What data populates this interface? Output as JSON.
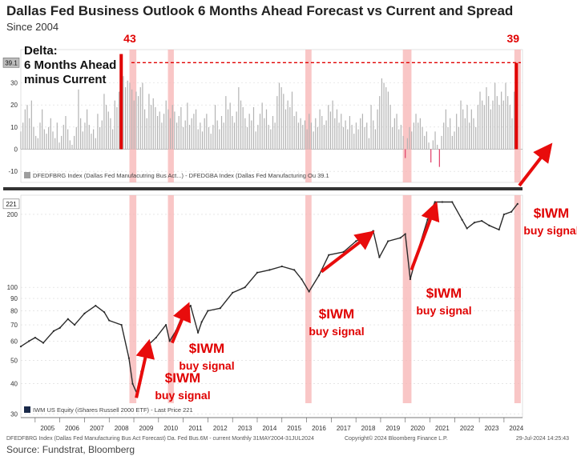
{
  "title": "Dallas Fed Business Outlook 6 Months Ahead Forecast vs Current and Spread",
  "subtitle": "Since 2004",
  "source": "Source: Fundstrat, Bloomberg",
  "chart_data": [
    {
      "type": "bar",
      "panel": "top",
      "annotation": "Delta:\n6 Months Ahead\nminus Current",
      "annotation_lines": [
        "Delta:",
        "6 Months Ahead",
        "minus Current"
      ],
      "legend": "DFEDFBRG Index (Dallas Fed Manufacutring Bus Act...) - DFEDGBA Index (Dallas Fed Manufacturing Ou 39.1",
      "last_value_label": "39.1",
      "yticks": [
        30,
        20,
        10,
        0,
        -10
      ],
      "ylim": [
        -15,
        45
      ],
      "x_start": 2004.42,
      "x_end": 2024.5,
      "highlight_labels": [
        {
          "text": "43",
          "x": 2008.9,
          "value": 43
        },
        {
          "text": "39",
          "x": 2024.5,
          "value": 39
        }
      ],
      "reference_line": 39.1,
      "colors": {
        "positive": "#b3b3b3",
        "negative": "#e0406a",
        "highlight": "#e00000"
      },
      "values": [
        8,
        12,
        18,
        20,
        14,
        22,
        10,
        6,
        5,
        12,
        18,
        9,
        7,
        10,
        14,
        8,
        5,
        12,
        3,
        6,
        11,
        15,
        9,
        4,
        2,
        6,
        10,
        27,
        14,
        8,
        12,
        18,
        11,
        7,
        9,
        5,
        16,
        10,
        13,
        25,
        20,
        17,
        14,
        9,
        22,
        19,
        26,
        43,
        33,
        28,
        31,
        30,
        27,
        22,
        26,
        24,
        28,
        30,
        18,
        14,
        25,
        20,
        23,
        19,
        15,
        17,
        12,
        16,
        22,
        18,
        14,
        20,
        17,
        12,
        15,
        19,
        10,
        13,
        21,
        11,
        14,
        16,
        18,
        9,
        12,
        8,
        14,
        16,
        10,
        7,
        11,
        20,
        13,
        9,
        15,
        12,
        24,
        18,
        21,
        15,
        12,
        17,
        28,
        22,
        19,
        14,
        10,
        16,
        13,
        19,
        8,
        11,
        16,
        21,
        14,
        18,
        11,
        9,
        15,
        12,
        24,
        30,
        28,
        25,
        18,
        22,
        19,
        26,
        15,
        17,
        12,
        14,
        11,
        13,
        9,
        16,
        12,
        8,
        14,
        10,
        18,
        15,
        11,
        13,
        20,
        17,
        22,
        14,
        18,
        12,
        16,
        10,
        13,
        9,
        15,
        11,
        7,
        12,
        9,
        14,
        16,
        10,
        12,
        5,
        20,
        13,
        9,
        18,
        24,
        32,
        30,
        28,
        26,
        20,
        10,
        14,
        16,
        9,
        11,
        6,
        -4,
        5,
        10,
        8,
        12,
        16,
        12,
        14,
        10,
        6,
        8,
        3,
        -6,
        4,
        8,
        2,
        -8,
        6,
        12,
        18,
        10,
        14,
        6,
        8,
        16,
        10,
        22,
        18,
        14,
        20,
        12,
        18,
        14,
        10,
        20,
        26,
        22,
        20,
        28,
        24,
        18,
        22,
        30,
        24,
        20,
        26,
        22,
        30,
        24,
        20,
        14,
        26,
        39
      ]
    },
    {
      "type": "line",
      "panel": "bottom",
      "series_name": "IWM US Equity (iShares Russell 2000 ETF) - Last Price 221",
      "last_value_label": "221",
      "yscale": "log",
      "yticks": [
        200,
        100,
        90,
        80,
        70,
        60,
        50,
        40,
        30
      ],
      "ylim": [
        29,
        240
      ],
      "x": [
        2004.42,
        2004.75,
        2005.0,
        2005.33,
        2005.75,
        2006.0,
        2006.33,
        2006.6,
        2007.0,
        2007.45,
        2007.8,
        2008.0,
        2008.5,
        2008.8,
        2008.95,
        2009.15,
        2009.3,
        2009.6,
        2009.9,
        2010.3,
        2010.45,
        2010.7,
        2011.0,
        2011.3,
        2011.6,
        2011.75,
        2012.0,
        2012.5,
        2013.0,
        2013.5,
        2014.0,
        2014.5,
        2015.0,
        2015.5,
        2015.8,
        2016.1,
        2016.5,
        2016.9,
        2017.5,
        2018.0,
        2018.7,
        2018.95,
        2019.3,
        2019.8,
        2020.0,
        2020.2,
        2020.5,
        2020.9,
        2021.2,
        2021.5,
        2021.9,
        2022.3,
        2022.5,
        2022.8,
        2023.1,
        2023.4,
        2023.8,
        2024.0,
        2024.3,
        2024.55
      ],
      "values": [
        57,
        60,
        62,
        59,
        66,
        68,
        74,
        70,
        78,
        84,
        79,
        73,
        70,
        51,
        40,
        36,
        45,
        58,
        62,
        70,
        60,
        66,
        78,
        84,
        65,
        72,
        80,
        82,
        95,
        100,
        115,
        118,
        122,
        118,
        108,
        96,
        112,
        136,
        140,
        155,
        171,
        133,
        155,
        160,
        166,
        108,
        140,
        190,
        225,
        225,
        225,
        190,
        175,
        185,
        188,
        180,
        173,
        200,
        205,
        221
      ],
      "buy_signal_label": "$IWM\nbuy signal",
      "buy_signals": [
        {
          "label_lines": [
            "$IWM",
            "buy signal"
          ],
          "from": [
            2009.1,
            35
          ],
          "to": [
            2009.55,
            56
          ]
        },
        {
          "label_lines": [
            "$IWM",
            "buy signal"
          ],
          "from": [
            2010.55,
            59
          ],
          "to": [
            2011.1,
            80
          ]
        },
        {
          "label_lines": [
            "$IWM",
            "buy signal"
          ],
          "from": [
            2016.6,
            116
          ],
          "to": [
            2018.45,
            162
          ]
        },
        {
          "label_lines": [
            "$IWM",
            "buy signal"
          ],
          "from": [
            2020.25,
            118
          ],
          "to": [
            2021.15,
            208
          ]
        },
        {
          "label_lines": [
            "$IWM",
            "buy signal"
          ],
          "from": [
            2024.55,
            221
          ],
          "to": [
            2025.0,
            290
          ]
        }
      ],
      "highlight_bands": [
        [
          2008.82,
          2009.1
        ],
        [
          2010.38,
          2010.62
        ],
        [
          2015.95,
          2016.2
        ],
        [
          2019.9,
          2020.25
        ],
        [
          2024.42,
          2024.68
        ]
      ],
      "colors": {
        "line": "#2a2a2a",
        "band": "#f7b3b3",
        "arrow": "#e80c0c",
        "label": "#e00000"
      }
    }
  ],
  "xaxis": {
    "years": [
      "2005",
      "2006",
      "2007",
      "2008",
      "2009",
      "2010",
      "2011",
      "2012",
      "2013",
      "2014",
      "2015",
      "2016",
      "2017",
      "2018",
      "2019",
      "2020",
      "2021",
      "2022",
      "2023",
      "2024"
    ],
    "range": [
      2004.42,
      2024.75
    ]
  },
  "footer": {
    "left": "DFEDFBRG Index (Dallas Fed Manufacturing Bus Act Forecast) Da. Fed Bus.6M - current  Monthly 31MAY2004-31JUL2024",
    "middle": "Copyright© 2024 Bloomberg Finance L.P.",
    "right": "29-Jul-2024 14:25:43"
  }
}
